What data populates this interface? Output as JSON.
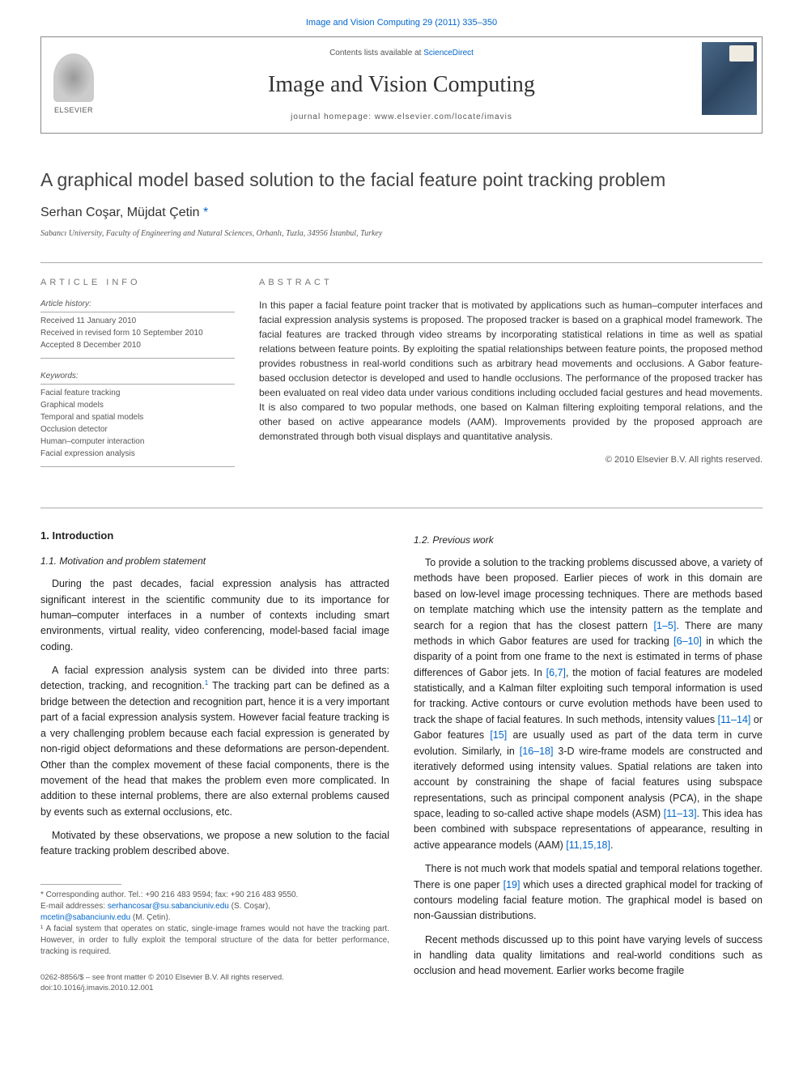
{
  "top_link": "Image and Vision Computing 29 (2011) 335–350",
  "header": {
    "elsevier": "ELSEVIER",
    "contents_prefix": "Contents lists available at ",
    "contents_link": "ScienceDirect",
    "journal": "Image and Vision Computing",
    "homepage": "journal homepage: www.elsevier.com/locate/imavis"
  },
  "title": "A graphical model based solution to the facial feature point tracking problem",
  "authors": "Serhan Coşar, Müjdat Çetin ",
  "star": "*",
  "affiliation": "Sabancı University, Faculty of Engineering and Natural Sciences, Orhanlı, Tuzla, 34956 İstanbul, Turkey",
  "info": {
    "heading": "article info",
    "history_label": "Article history:",
    "history": [
      "Received 11 January 2010",
      "Received in revised form 10 September 2010",
      "Accepted 8 December 2010"
    ],
    "keywords_label": "Keywords:",
    "keywords": [
      "Facial feature tracking",
      "Graphical models",
      "Temporal and spatial models",
      "Occlusion detector",
      "Human–computer interaction",
      "Facial expression analysis"
    ]
  },
  "abstract": {
    "heading": "abstract",
    "text": "In this paper a facial feature point tracker that is motivated by applications such as human–computer interfaces and facial expression analysis systems is proposed. The proposed tracker is based on a graphical model framework. The facial features are tracked through video streams by incorporating statistical relations in time as well as spatial relations between feature points. By exploiting the spatial relationships between feature points, the proposed method provides robustness in real-world conditions such as arbitrary head movements and occlusions. A Gabor feature-based occlusion detector is developed and used to handle occlusions. The performance of the proposed tracker has been evaluated on real video data under various conditions including occluded facial gestures and head movements. It is also compared to two popular methods, one based on Kalman filtering exploiting temporal relations, and the other based on active appearance models (AAM). Improvements provided by the proposed approach are demonstrated through both visual displays and quantitative analysis.",
    "copyright": "© 2010 Elsevier B.V. All rights reserved."
  },
  "body": {
    "left": {
      "sec": "1. Introduction",
      "subsec": "1.1. Motivation and problem statement",
      "p1": "During the past decades, facial expression analysis has attracted significant interest in the scientific community due to its importance for human–computer interfaces in a number of contexts including smart environments, virtual reality, video conferencing, model-based facial image coding.",
      "p2a": "A facial expression analysis system can be divided into three parts: detection, tracking, and recognition.",
      "p2b": " The tracking part can be defined as a bridge between the detection and recognition part, hence it is a very important part of a facial expression analysis system. However facial feature tracking is a very challenging problem because each facial expression is generated by non-rigid object deformations and these deformations are person-dependent. Other than the complex movement of these facial components, there is the movement of the head that makes the problem even more complicated. In addition to these internal problems, there are also external problems caused by events such as external occlusions, etc.",
      "p3": "Motivated by these observations, we propose a new solution to the facial feature tracking problem described above."
    },
    "right": {
      "subsec": "1.2. Previous work",
      "p1": "To provide a solution to the tracking problems discussed above, a variety of methods have been proposed. Earlier pieces of work in this domain are based on low-level image processing techniques. There are methods based on template matching which use the intensity pattern as the template and search for a region that has the closest pattern [1–5]. There are many methods in which Gabor features are used for tracking [6–10] in which the disparity of a point from one frame to the next is estimated in terms of phase differences of Gabor jets. In [6,7], the motion of facial features are modeled statistically, and a Kalman filter exploiting such temporal information is used for tracking. Active contours or curve evolution methods have been used to track the shape of facial features. In such methods, intensity values [11–14] or Gabor features [15] are usually used as part of the data term in curve evolution. Similarly, in [16–18] 3-D wire-frame models are constructed and iteratively deformed using intensity values. Spatial relations are taken into account by constraining the shape of facial features using subspace representations, such as principal component analysis (PCA), in the shape space, leading to so-called active shape models (ASM) [11–13]. This idea has been combined with subspace representations of appearance, resulting in active appearance models (AAM) [11,15,18].",
      "p2": "There is not much work that models spatial and temporal relations together. There is one paper [19] which uses a directed graphical model for tracking of contours modeling facial feature motion. The graphical model is based on non-Gaussian distributions.",
      "p3": "Recent methods discussed up to this point have varying levels of success in handling data quality limitations and real-world conditions such as occlusion and head movement. Earlier works become fragile"
    }
  },
  "footnotes": {
    "corr": "* Corresponding author. Tel.: +90 216 483 9594; fax: +90 216 483 9550.",
    "emails_label": "E-mail addresses: ",
    "email1": "serhancosar@su.sabanciuniv.edu",
    "email1_who": " (S. Coşar),",
    "email2": "mcetin@sabanciuniv.edu",
    "email2_who": " (M. Çetin).",
    "fn1": "¹ A facial system that operates on static, single-image frames would not have the tracking part. However, in order to fully exploit the temporal structure of the data for better performance, tracking is required."
  },
  "bottom": {
    "line1": "0262-8856/$ – see front matter © 2010 Elsevier B.V. All rights reserved.",
    "doi": "doi:10.1016/j.imavis.2010.12.001"
  },
  "colors": {
    "link": "#0066cc",
    "text": "#222222",
    "muted": "#555555",
    "rule": "#aaaaaa"
  }
}
